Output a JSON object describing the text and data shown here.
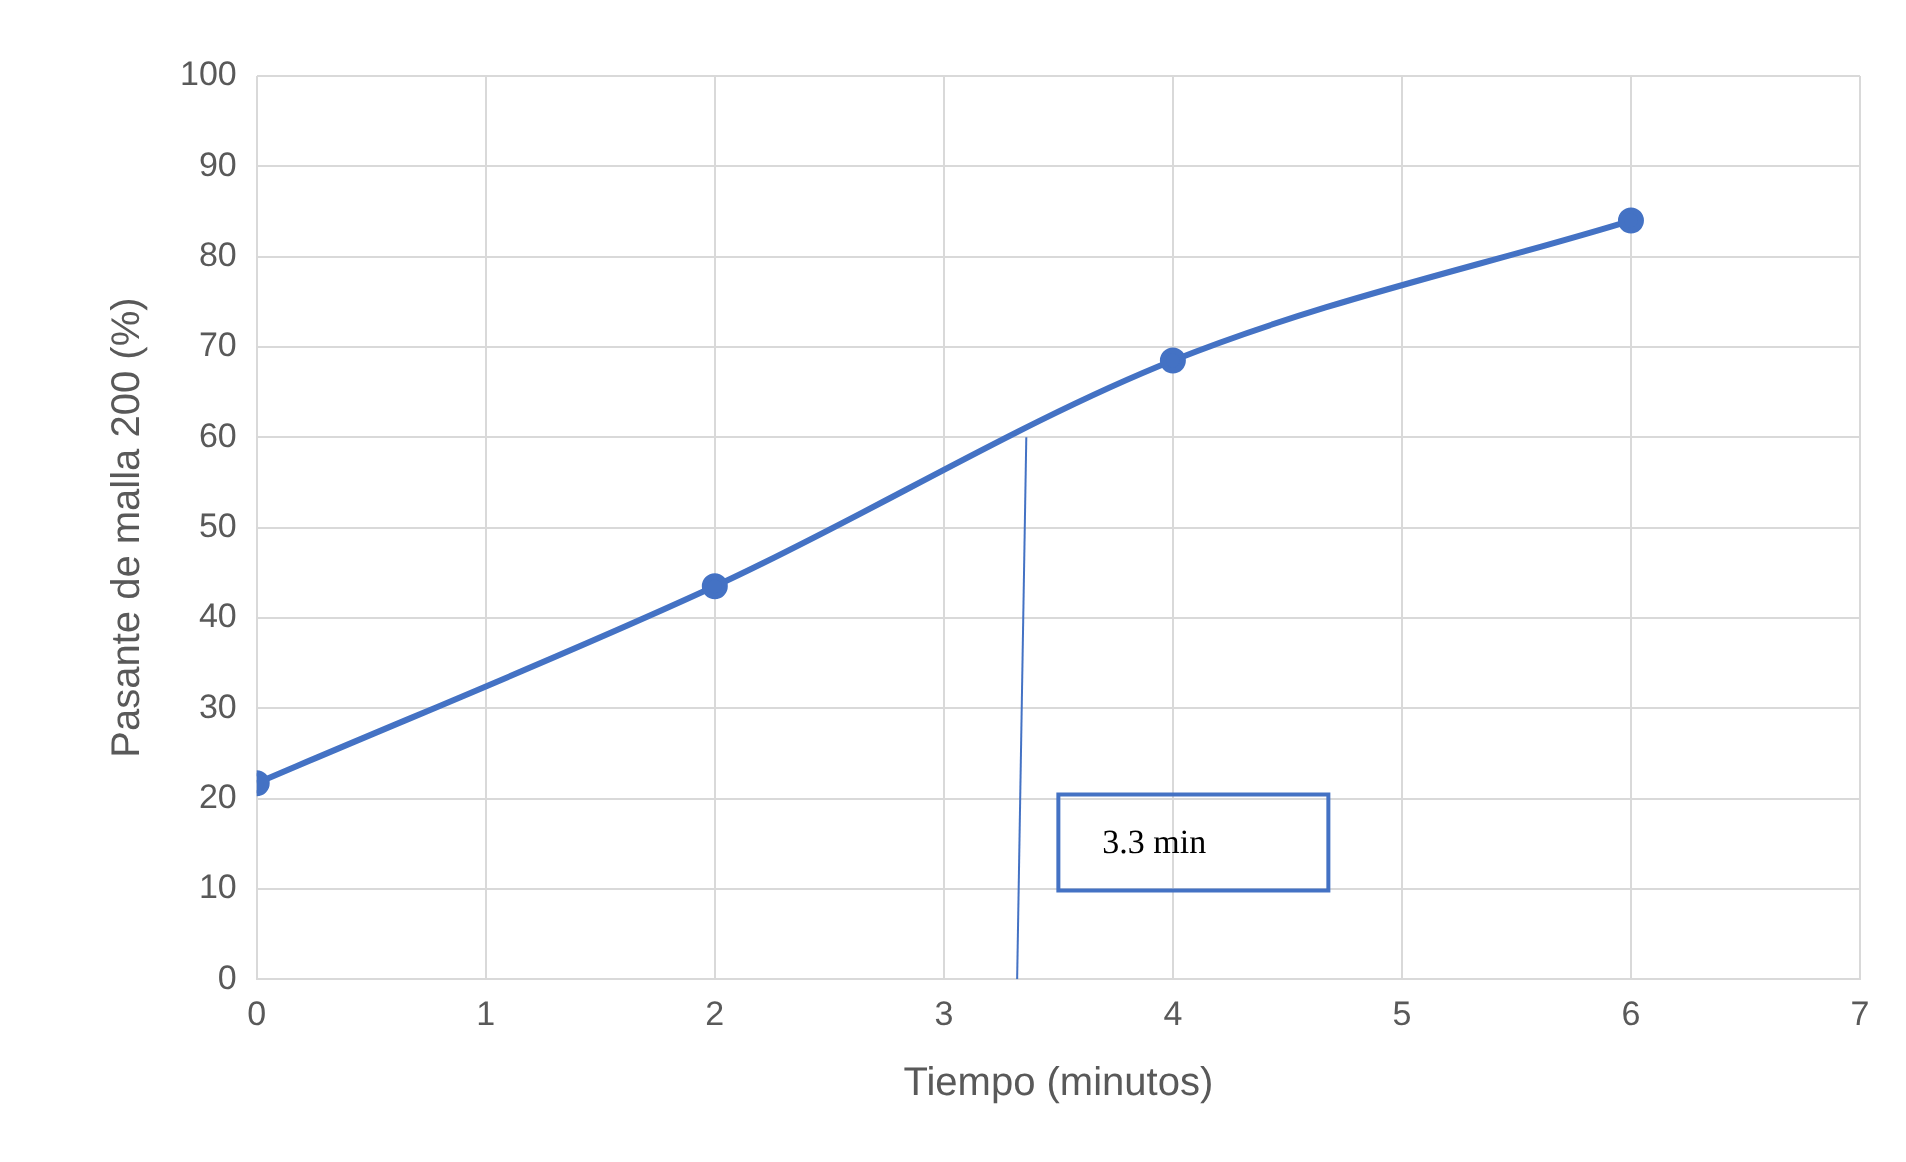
{
  "chart_data": {
    "type": "line",
    "xlabel": "Tiempo (minutos)",
    "ylabel": "Pasante de malla 200 (%)",
    "x": [
      0,
      2,
      4,
      6
    ],
    "series": [
      {
        "color": "#4472c4",
        "values": [
          21.7,
          43.5,
          68.5,
          84
        ]
      },
      {
        "color": "#4472c4",
        "x": [
          3.32,
          3.36
        ],
        "values": [
          0,
          60
        ],
        "marker": "none"
      }
    ],
    "xlim": [
      0,
      7
    ],
    "xticks": [
      0,
      1,
      2,
      3,
      4,
      5,
      6,
      7
    ],
    "ylim": [
      0,
      100
    ],
    "yticks": [
      0,
      10,
      20,
      30,
      40,
      50,
      60,
      70,
      80,
      90,
      100
    ],
    "grid": true,
    "legend": false,
    "marker": "circle",
    "line_style": "solid",
    "annotations": [
      "3.3 min"
    ]
  }
}
